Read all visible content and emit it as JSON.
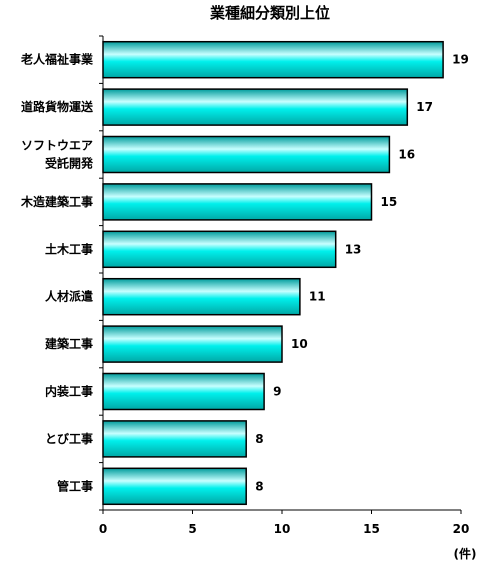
{
  "chart_data": {
    "type": "bar",
    "orientation": "horizontal",
    "title": "業種細分類別上位",
    "categories": [
      "老人福祉事業",
      "道路貨物運送",
      "ソフトウエア\n受託開発",
      "木造建築工事",
      "土木工事",
      "人材派遣",
      "建築工事",
      "内装工事",
      "とび工事",
      "管工事"
    ],
    "values": [
      19,
      17,
      16,
      15,
      13,
      11,
      10,
      9,
      8,
      8
    ],
    "value_labels": [
      "19",
      "17",
      "16",
      "15",
      "13",
      "11",
      "10",
      "9",
      "8",
      "8"
    ],
    "xlim": [
      0,
      20
    ],
    "xticks": [
      0,
      5,
      10,
      15,
      20
    ],
    "xtick_labels": [
      "0",
      "5",
      "10",
      "15",
      "20"
    ],
    "unit_label": "(件)",
    "grid": false,
    "colors": {
      "bar": "#00e5e0",
      "bar_edge": "#000000",
      "bar_highlight": "#c8ffff",
      "bar_shade": "#009c9c"
    }
  }
}
